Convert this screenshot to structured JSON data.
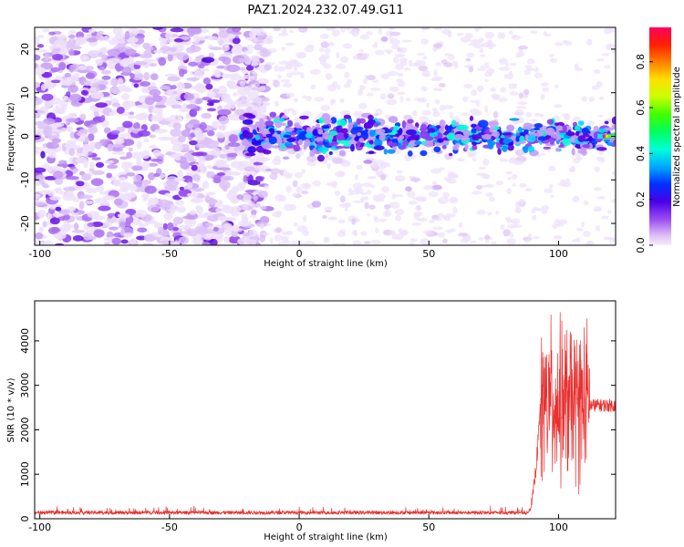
{
  "title": "PAZ1.2024.232.07.49.G11",
  "chart_data": [
    {
      "type": "heatmap",
      "xlabel": "Height of straight line (km)",
      "ylabel": "Frequency (Hz)",
      "xlim": [
        -102,
        122
      ],
      "ylim": [
        -25,
        25
      ],
      "x_ticks": [
        -100,
        -50,
        0,
        50,
        100
      ],
      "y_ticks": [
        -20,
        -10,
        0,
        10,
        20
      ],
      "colorbar": {
        "label": "Normalized spectral amplitude",
        "range": [
          0,
          0.95
        ],
        "ticks": [
          0.0,
          0.2,
          0.4,
          0.6,
          0.8
        ]
      },
      "description_of_field": {
        "noise_region_x": [
          -102,
          -22
        ],
        "signal_band_x": [
          -22,
          122
        ],
        "signal_band_center_hz": 0,
        "peak_near_x": 118
      }
    },
    {
      "type": "line",
      "xlabel": "Height of straight line (km)",
      "ylabel": "SNR (10 * v/v)",
      "xlim": [
        -102,
        122
      ],
      "ylim": [
        0,
        4900
      ],
      "x_ticks": [
        -100,
        -50,
        0,
        50,
        100
      ],
      "y_ticks": [
        0,
        1000,
        2000,
        3000,
        4000
      ],
      "series_color": "#e83030",
      "segments": [
        {
          "x_range": [
            -102,
            88
          ],
          "baseline": 130,
          "spread": 80
        },
        {
          "x_range": [
            88,
            93
          ],
          "rise_to": 2500
        },
        {
          "x_range": [
            93,
            112
          ],
          "baseline": 2600,
          "spread": 2200,
          "max": 4900
        },
        {
          "x_range": [
            112,
            122
          ],
          "baseline": 2550,
          "spread": 150
        }
      ]
    }
  ]
}
